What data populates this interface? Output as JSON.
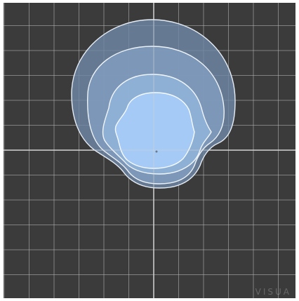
{
  "viewer": {
    "background_color": "#3b3b3b",
    "grid_color": "#b9b9b9",
    "axis_color": "#d8d8d8",
    "watermark": "VISUA"
  },
  "plot": {
    "contours": [
      {
        "level": 1,
        "fill": "#6f87a6",
        "stroke": "#e6edf5"
      },
      {
        "level": 2,
        "fill": "#819dbf",
        "stroke": "#eef3f8"
      },
      {
        "level": 3,
        "fill": "#93b6dc",
        "stroke": "#f2f6fb"
      },
      {
        "level": 4,
        "fill": "#a9d0fb",
        "stroke": "#f7fbff"
      }
    ]
  }
}
